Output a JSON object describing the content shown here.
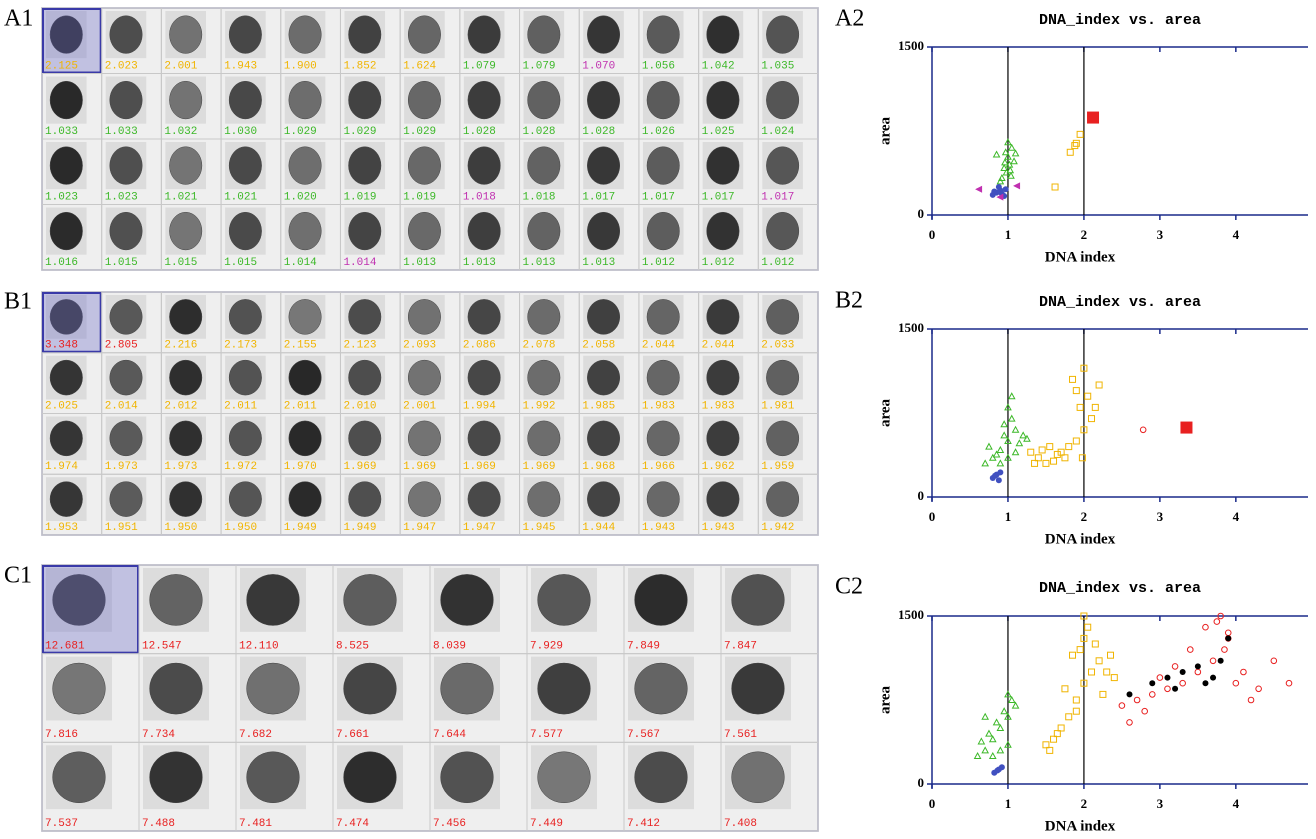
{
  "panels": [
    {
      "label": "A1",
      "columns": 13,
      "cells": [
        "2.125",
        "2.023",
        "2.001",
        "1.943",
        "1.900",
        "1.852",
        "1.624",
        "1.079",
        "1.079",
        "1.070",
        "1.056",
        "1.042",
        "1.035",
        "1.033",
        "1.033",
        "1.032",
        "1.030",
        "1.029",
        "1.029",
        "1.029",
        "1.028",
        "1.028",
        "1.028",
        "1.026",
        "1.025",
        "1.024",
        "1.023",
        "1.023",
        "1.021",
        "1.021",
        "1.020",
        "1.019",
        "1.019",
        "1.018",
        "1.018",
        "1.017",
        "1.017",
        "1.017",
        "1.017",
        "1.016",
        "1.015",
        "1.015",
        "1.015",
        "1.014",
        "1.014",
        "1.013",
        "1.013",
        "1.013",
        "1.013",
        "1.012",
        "1.012",
        "1.012"
      ],
      "colors": [
        "#f0b400",
        "#f0b400",
        "#f0b400",
        "#f0b400",
        "#f0b400",
        "#f0b400",
        "#f0b400",
        "#3cb828",
        "#3cb828",
        "#c030b0",
        "#3cb828",
        "#3cb828",
        "#3cb828",
        "#3cb828",
        "#3cb828",
        "#3cb828",
        "#3cb828",
        "#3cb828",
        "#3cb828",
        "#3cb828",
        "#3cb828",
        "#3cb828",
        "#3cb828",
        "#3cb828",
        "#3cb828",
        "#3cb828",
        "#3cb828",
        "#3cb828",
        "#3cb828",
        "#3cb828",
        "#3cb828",
        "#3cb828",
        "#3cb828",
        "#c030b0",
        "#3cb828",
        "#3cb828",
        "#3cb828",
        "#3cb828",
        "#c030b0",
        "#3cb828",
        "#3cb828",
        "#3cb828",
        "#3cb828",
        "#3cb828",
        "#c030b0",
        "#3cb828",
        "#3cb828",
        "#3cb828",
        "#3cb828",
        "#3cb828",
        "#3cb828",
        "#3cb828"
      ]
    },
    {
      "label": "B1",
      "columns": 13,
      "cells": [
        "3.348",
        "2.805",
        "2.216",
        "2.173",
        "2.155",
        "2.123",
        "2.093",
        "2.086",
        "2.078",
        "2.058",
        "2.044",
        "2.044",
        "2.033",
        "2.025",
        "2.014",
        "2.012",
        "2.011",
        "2.011",
        "2.010",
        "2.001",
        "1.994",
        "1.992",
        "1.985",
        "1.983",
        "1.983",
        "1.981",
        "1.974",
        "1.973",
        "1.973",
        "1.972",
        "1.970",
        "1.969",
        "1.969",
        "1.969",
        "1.969",
        "1.968",
        "1.966",
        "1.962",
        "1.959",
        "1.953",
        "1.951",
        "1.950",
        "1.950",
        "1.949",
        "1.949",
        "1.947",
        "1.947",
        "1.945",
        "1.944",
        "1.943",
        "1.943",
        "1.942"
      ],
      "colors": [
        "#e82020",
        "#e82020",
        "#f0b400",
        "#f0b400",
        "#f0b400",
        "#f0b400",
        "#f0b400",
        "#f0b400",
        "#f0b400",
        "#f0b400",
        "#f0b400",
        "#f0b400",
        "#f0b400",
        "#f0b400",
        "#f0b400",
        "#f0b400",
        "#f0b400",
        "#f0b400",
        "#f0b400",
        "#f0b400",
        "#f0b400",
        "#f0b400",
        "#f0b400",
        "#f0b400",
        "#f0b400",
        "#f0b400",
        "#f0b400",
        "#f0b400",
        "#f0b400",
        "#f0b400",
        "#f0b400",
        "#f0b400",
        "#f0b400",
        "#f0b400",
        "#f0b400",
        "#f0b400",
        "#f0b400",
        "#f0b400",
        "#f0b400",
        "#f0b400",
        "#f0b400",
        "#f0b400",
        "#f0b400",
        "#f0b400",
        "#f0b400",
        "#f0b400",
        "#f0b400",
        "#f0b400",
        "#f0b400",
        "#f0b400",
        "#f0b400",
        "#f0b400"
      ]
    },
    {
      "label": "C1",
      "columns": 8,
      "cells": [
        "12.681",
        "12.547",
        "12.110",
        "8.525",
        "8.039",
        "7.929",
        "7.849",
        "7.847",
        "7.816",
        "7.734",
        "7.682",
        "7.661",
        "7.644",
        "7.577",
        "7.567",
        "7.561",
        "7.537",
        "7.488",
        "7.481",
        "7.474",
        "7.456",
        "7.449",
        "7.412",
        "7.408"
      ],
      "colors": [
        "#e82020",
        "#e82020",
        "#e82020",
        "#e82020",
        "#e82020",
        "#e82020",
        "#e82020",
        "#e82020",
        "#e82020",
        "#e82020",
        "#e82020",
        "#e82020",
        "#e82020",
        "#e82020",
        "#e82020",
        "#e82020",
        "#e82020",
        "#e82020",
        "#e82020",
        "#e82020",
        "#e82020",
        "#e82020",
        "#e82020",
        "#e82020"
      ]
    }
  ],
  "chart_data": [
    {
      "type": "scatter",
      "label": "A2",
      "title": "DNA_index vs. area",
      "x_label": "DNA index",
      "y_label": "area",
      "xlim": [
        0,
        4.95
      ],
      "ylim": [
        0,
        1500
      ],
      "xticks": [
        0,
        1,
        2,
        3,
        4
      ],
      "yticks": [
        0,
        1500
      ],
      "vlines": [
        1,
        2
      ],
      "series": [
        {
          "color": "#3cb828",
          "marker": "triangle",
          "x": [
            0.95,
            1.0,
            1.05,
            0.98,
            1.02,
            0.92,
            1.08,
            0.97,
            1.0,
            1.04,
            0.9,
            0.96,
            1.1,
            1.03,
            0.85
          ],
          "y": [
            420,
            520,
            600,
            380,
            450,
            330,
            480,
            560,
            650,
            350,
            300,
            470,
            550,
            400,
            540
          ]
        },
        {
          "color": "#4050c0",
          "marker": "dot",
          "x": [
            0.8,
            0.85,
            0.9,
            0.95,
            0.88,
            0.92,
            0.82,
            0.97
          ],
          "y": [
            180,
            200,
            220,
            170,
            250,
            190,
            210,
            230
          ]
        },
        {
          "color": "#c030b0",
          "marker": "triangle-left",
          "x": [
            0.62,
            1.12,
            0.9
          ],
          "y": [
            230,
            260,
            160
          ]
        },
        {
          "color": "#f0b400",
          "marker": "square",
          "x": [
            1.62,
            1.82,
            1.88,
            1.9,
            1.95
          ],
          "y": [
            250,
            560,
            620,
            640,
            720
          ]
        },
        {
          "color": "#e82020",
          "marker": "big-square",
          "x": [
            2.12
          ],
          "y": [
            870
          ]
        }
      ]
    },
    {
      "type": "scatter",
      "label": "B2",
      "title": "DNA_index vs. area",
      "x_label": "DNA index",
      "y_label": "area",
      "xlim": [
        0,
        4.95
      ],
      "ylim": [
        0,
        1500
      ],
      "xticks": [
        0,
        1,
        2,
        3,
        4
      ],
      "yticks": [
        0,
        1500
      ],
      "vlines": [
        1,
        2
      ],
      "series": [
        {
          "color": "#3cb828",
          "marker": "triangle",
          "x": [
            0.7,
            0.8,
            0.9,
            1.0,
            1.1,
            1.2,
            0.85,
            0.95,
            1.05,
            1.15,
            1.0,
            0.9,
            1.1,
            1.25,
            0.75,
            1.05,
            0.95,
            1.0
          ],
          "y": [
            300,
            350,
            420,
            500,
            600,
            550,
            380,
            650,
            700,
            480,
            800,
            300,
            400,
            520,
            450,
            900,
            550,
            350
          ]
        },
        {
          "color": "#4050c0",
          "marker": "dot",
          "x": [
            0.8,
            0.85,
            0.9,
            0.88,
            0.83
          ],
          "y": [
            170,
            200,
            220,
            150,
            190
          ]
        },
        {
          "color": "#f0b400",
          "marker": "square",
          "x": [
            1.3,
            1.4,
            1.5,
            1.6,
            1.7,
            1.8,
            1.9,
            2.0,
            2.1,
            1.95,
            2.05,
            1.85,
            1.75,
            1.65,
            1.55,
            1.45,
            2.0,
            1.9,
            2.15,
            1.35,
            2.2,
            1.98
          ],
          "y": [
            400,
            350,
            300,
            320,
            400,
            450,
            500,
            600,
            700,
            800,
            900,
            1050,
            350,
            380,
            450,
            420,
            1150,
            950,
            800,
            300,
            1000,
            350
          ]
        },
        {
          "color": "#e82020",
          "marker": "circle",
          "x": [
            2.78
          ],
          "y": [
            600
          ]
        },
        {
          "color": "#e82020",
          "marker": "big-square",
          "x": [
            3.35
          ],
          "y": [
            620
          ]
        }
      ]
    },
    {
      "type": "scatter",
      "label": "C2",
      "title": "DNA_index vs. area",
      "x_label": "DNA index",
      "y_label": "area",
      "xlim": [
        0,
        4.95
      ],
      "ylim": [
        0,
        1500
      ],
      "xticks": [
        0,
        1,
        2,
        3,
        4
      ],
      "yticks": [
        0,
        1500
      ],
      "vlines": [
        1,
        2
      ],
      "series": [
        {
          "color": "#3cb828",
          "marker": "triangle",
          "x": [
            0.6,
            0.7,
            0.8,
            0.9,
            1.0,
            1.1,
            0.75,
            0.85,
            0.95,
            1.05,
            0.65,
            0.9,
            1.0,
            0.8,
            0.7,
            1.0
          ],
          "y": [
            250,
            300,
            400,
            500,
            600,
            700,
            450,
            550,
            650,
            750,
            380,
            300,
            350,
            250,
            600,
            800
          ]
        },
        {
          "color": "#4050c0",
          "marker": "dot",
          "x": [
            0.82,
            0.88,
            0.92,
            0.86
          ],
          "y": [
            100,
            130,
            150,
            120
          ]
        },
        {
          "color": "#f0b400",
          "marker": "square",
          "x": [
            1.5,
            1.6,
            1.7,
            1.8,
            1.9,
            2.0,
            2.1,
            2.2,
            2.3,
            2.4,
            1.95,
            2.05,
            1.85,
            1.75,
            2.0,
            2.15,
            1.65,
            2.25,
            1.9,
            2.0,
            2.35,
            1.55
          ],
          "y": [
            350,
            400,
            500,
            600,
            750,
            900,
            1000,
            1100,
            1000,
            950,
            1200,
            1400,
            1150,
            850,
            1500,
            1250,
            450,
            800,
            650,
            1300,
            1150,
            300
          ]
        },
        {
          "color": "#e82020",
          "marker": "circle",
          "x": [
            2.5,
            2.7,
            2.9,
            3.1,
            3.3,
            3.5,
            3.7,
            3.9,
            4.1,
            4.3,
            4.5,
            4.7,
            3.8,
            3.6,
            3.4,
            3.2,
            3.0,
            2.8,
            3.75,
            3.9,
            4.0,
            3.85,
            4.2,
            2.6
          ],
          "y": [
            700,
            750,
            800,
            850,
            900,
            1000,
            1100,
            1300,
            1000,
            850,
            1100,
            900,
            1500,
            1400,
            1200,
            1050,
            950,
            650,
            1450,
            1350,
            900,
            1200,
            750,
            550
          ]
        },
        {
          "color": "#000000",
          "marker": "dot",
          "x": [
            2.6,
            2.9,
            3.1,
            3.3,
            3.5,
            3.7,
            3.8,
            3.9,
            3.2,
            3.6
          ],
          "y": [
            800,
            900,
            950,
            1000,
            1050,
            950,
            1100,
            1300,
            850,
            900
          ]
        }
      ]
    }
  ]
}
